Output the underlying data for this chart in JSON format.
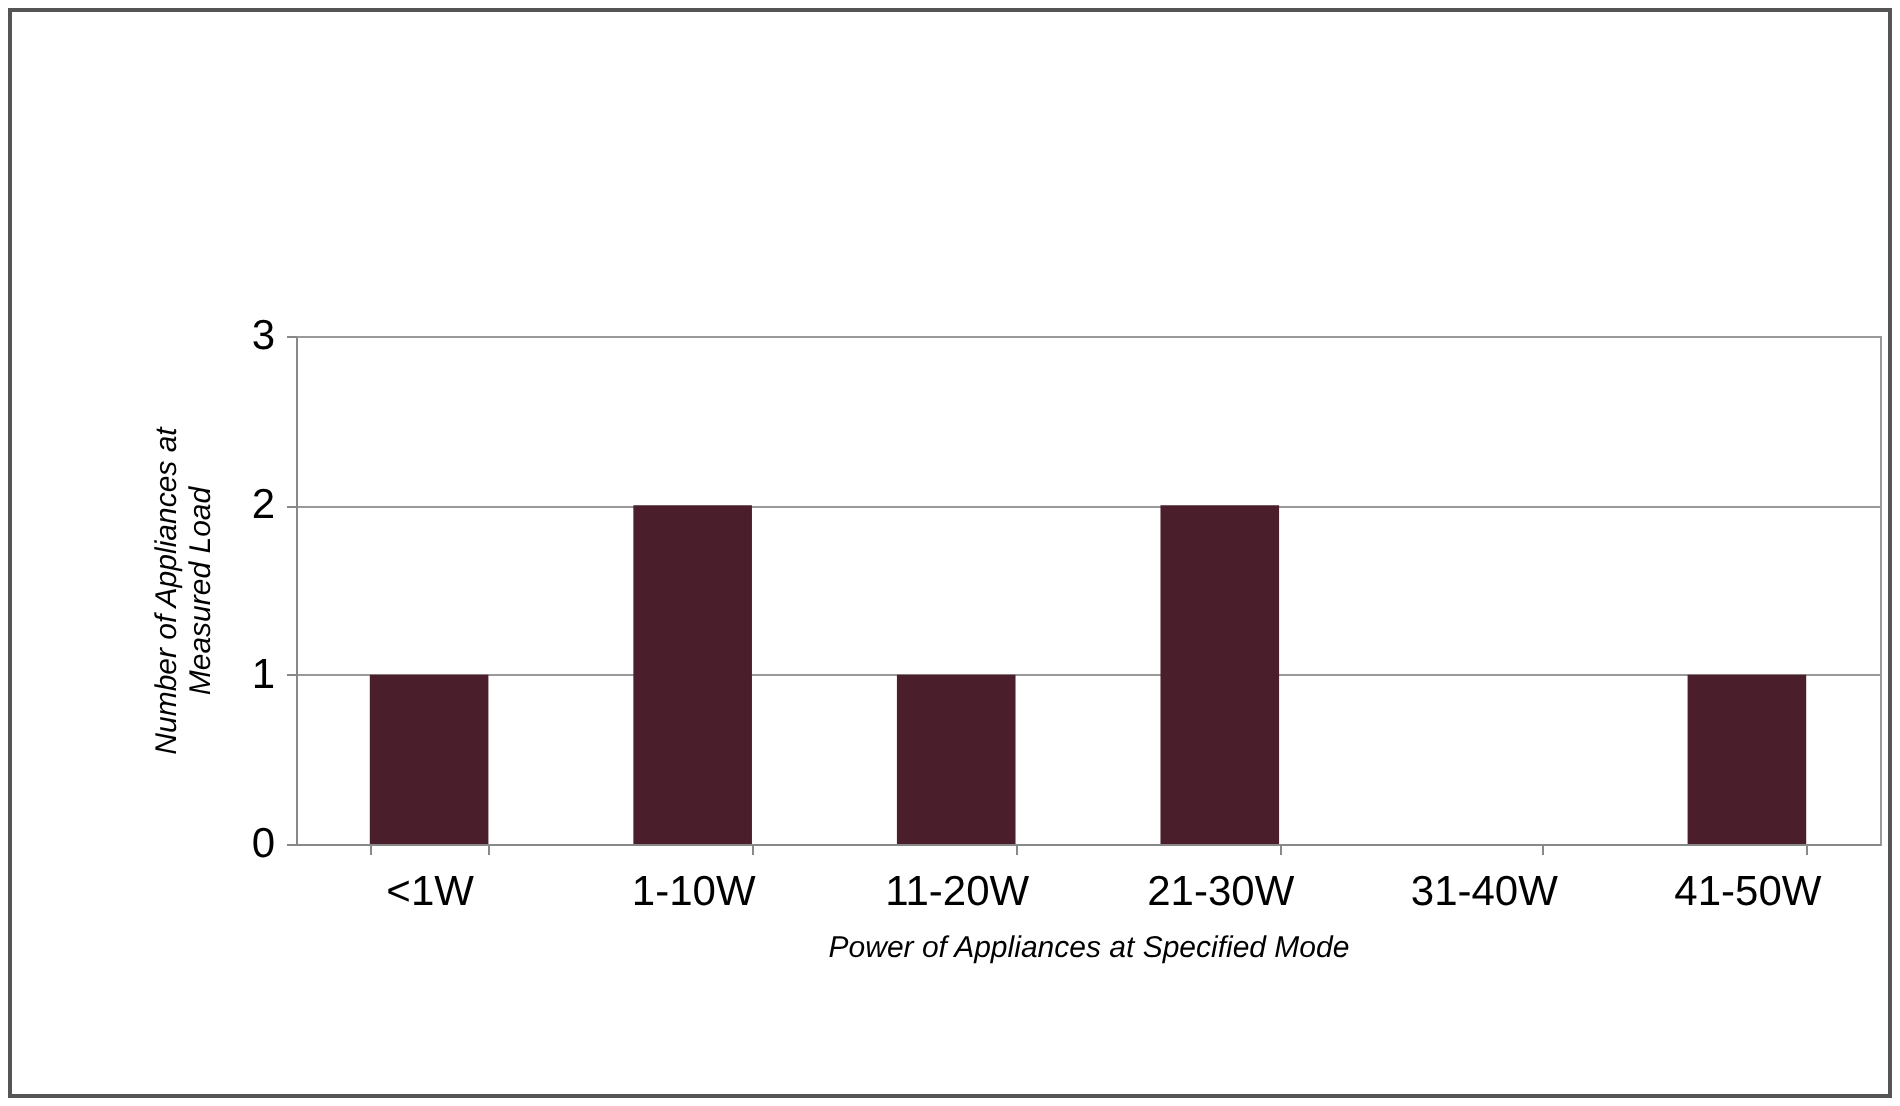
{
  "chart_data": {
    "type": "bar",
    "xlabel": "Power of Appliances at Specified Mode",
    "ylabel": "Number of Appliances at Measured Load",
    "categories": [
      "<1W",
      "1-10W",
      "11-20W",
      "21-30W",
      "31-40W",
      "41-50W"
    ],
    "values": [
      1,
      2,
      1,
      2,
      0,
      1
    ],
    "color": "#4a1f2b",
    "ylim": [
      0,
      3
    ],
    "yticks": [
      0,
      1,
      2,
      3
    ],
    "grid": "y"
  }
}
